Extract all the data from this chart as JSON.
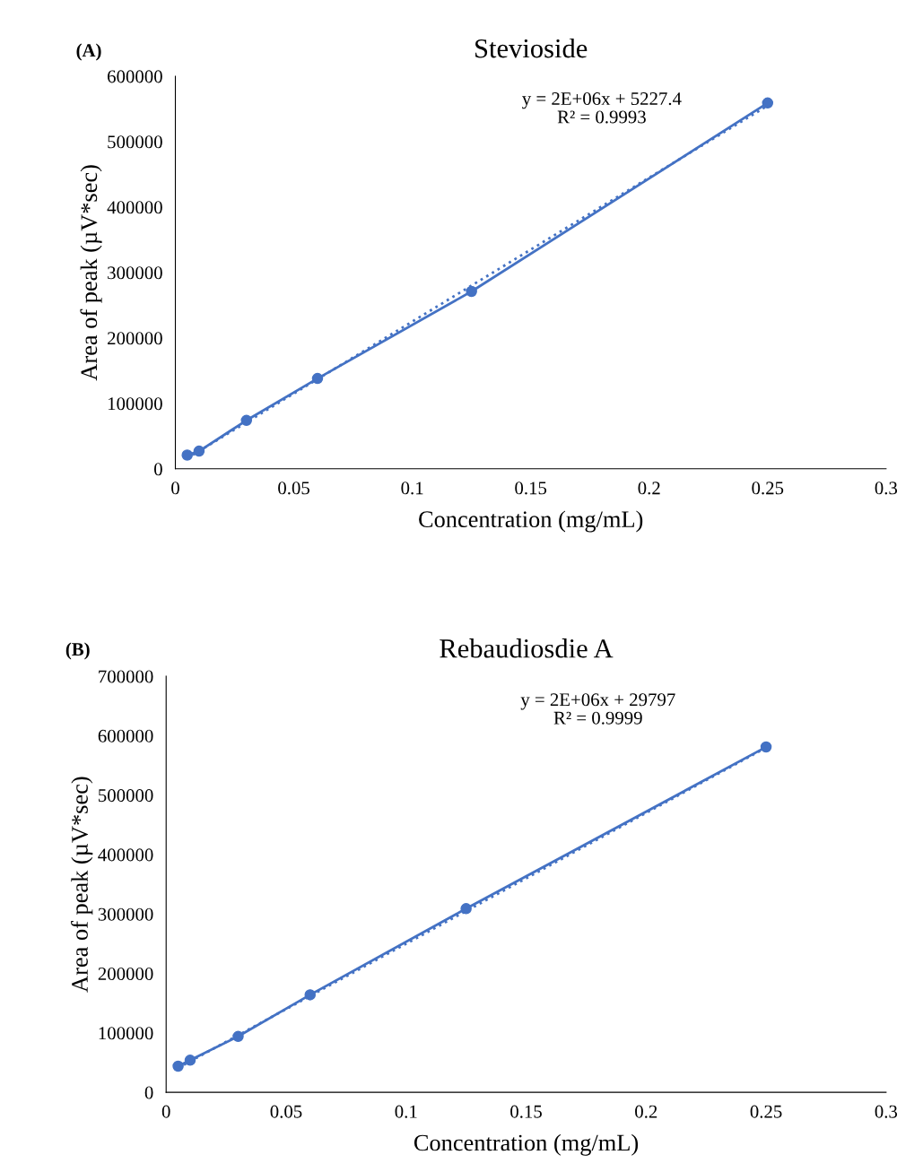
{
  "chart_data": [
    {
      "type": "line",
      "title": "Stevioside",
      "xlabel": "Concentration (mg/mL)",
      "ylabel": "Area of peak (µV*sec)",
      "annotations": [
        "(A)",
        "y = 2E+06x + 5227.4\nR² = 0.9993"
      ],
      "xlim": [
        0,
        0.3
      ],
      "xticks": [
        0,
        0.05,
        0.1,
        0.15,
        0.2,
        0.25,
        0.3
      ],
      "ylim": [
        0,
        600000
      ],
      "yticks": [
        0,
        100000,
        200000,
        300000,
        400000,
        500000,
        600000
      ],
      "grid": false,
      "legend": false,
      "series": [
        {
          "color": "#4472c4",
          "marker": "circle",
          "line_style": "solid",
          "x": [
            0.005,
            0.01,
            0.03,
            0.06,
            0.125,
            0.25
          ],
          "values": [
            21000,
            27000,
            74000,
            138000,
            271000,
            559000
          ]
        },
        {
          "color": "#4472c4",
          "marker": "none",
          "line_style": "dotted",
          "x": [
            0.005,
            0.25
          ],
          "values": [
            16000,
            555000
          ]
        }
      ]
    },
    {
      "type": "line",
      "title": "Rebaudiosdie A",
      "xlabel": "Concentration (mg/mL)",
      "ylabel": "Area of peak (µV*sec)",
      "annotations": [
        "(B)",
        "y = 2E+06x + 29797\nR² = 0.9999"
      ],
      "xlim": [
        0,
        0.3
      ],
      "xticks": [
        0,
        0.05,
        0.1,
        0.15,
        0.2,
        0.25,
        0.3
      ],
      "ylim": [
        0,
        700000
      ],
      "yticks": [
        0,
        100000,
        200000,
        300000,
        400000,
        500000,
        600000,
        700000
      ],
      "grid": false,
      "legend": false,
      "series": [
        {
          "color": "#4472c4",
          "marker": "circle",
          "line_style": "solid",
          "x": [
            0.005,
            0.01,
            0.03,
            0.06,
            0.125,
            0.25
          ],
          "values": [
            44000,
            54000,
            94000,
            164000,
            309000,
            581000
          ]
        },
        {
          "color": "#4472c4",
          "marker": "none",
          "line_style": "dotted",
          "x": [
            0.005,
            0.25
          ],
          "values": [
            41000,
            580000
          ]
        }
      ]
    }
  ]
}
